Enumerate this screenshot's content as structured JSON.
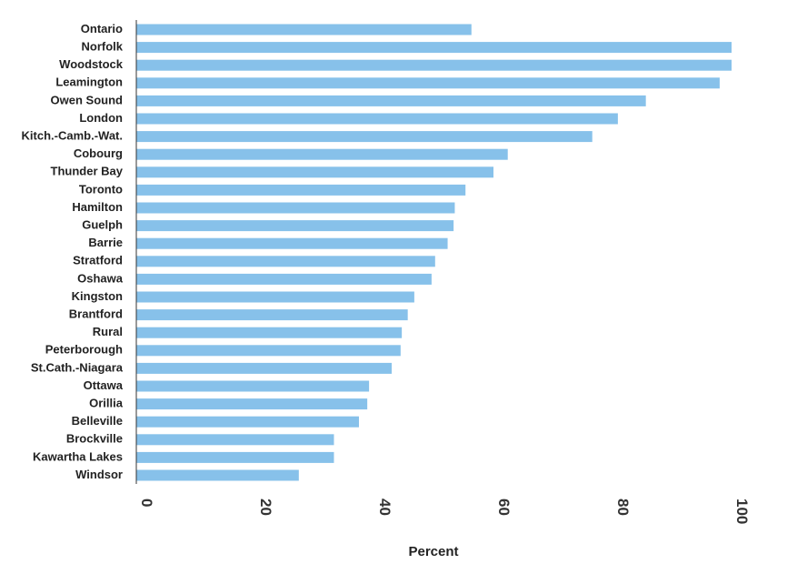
{
  "chart_data": {
    "type": "bar",
    "orientation": "horizontal",
    "categories": [
      "Ontario",
      "Norfolk",
      "Woodstock",
      "Leamington",
      "Owen Sound",
      "London",
      "Kitch.-Camb.-Wat.",
      "Cobourg",
      "Thunder Bay",
      "Toronto",
      "Hamilton",
      "Guelph",
      "Barrie",
      "Stratford",
      "Oshawa",
      "Kingston",
      "Brantford",
      "Rural",
      "Peterborough",
      "St.Cath.-Niagara",
      "Ottawa",
      "Orillia",
      "Belleville",
      "Brockville",
      "Kawartha Lakes",
      "Windsor"
    ],
    "values": [
      56.3,
      100,
      100,
      98,
      85.6,
      80.9,
      76.6,
      62.4,
      60.0,
      55.3,
      53.5,
      53.3,
      52.3,
      50.2,
      49.6,
      46.7,
      45.6,
      44.6,
      44.4,
      42.9,
      39.1,
      38.8,
      37.4,
      33.2,
      33.2,
      27.3
    ],
    "xlabel": "Percent",
    "ylabel": "",
    "xlim": [
      0,
      100
    ],
    "xticks": [
      "0",
      "20",
      "40",
      "60",
      "80",
      "100"
    ],
    "grid": false,
    "colors": {
      "bar": "#87c1ea",
      "axis": "#333333"
    }
  }
}
